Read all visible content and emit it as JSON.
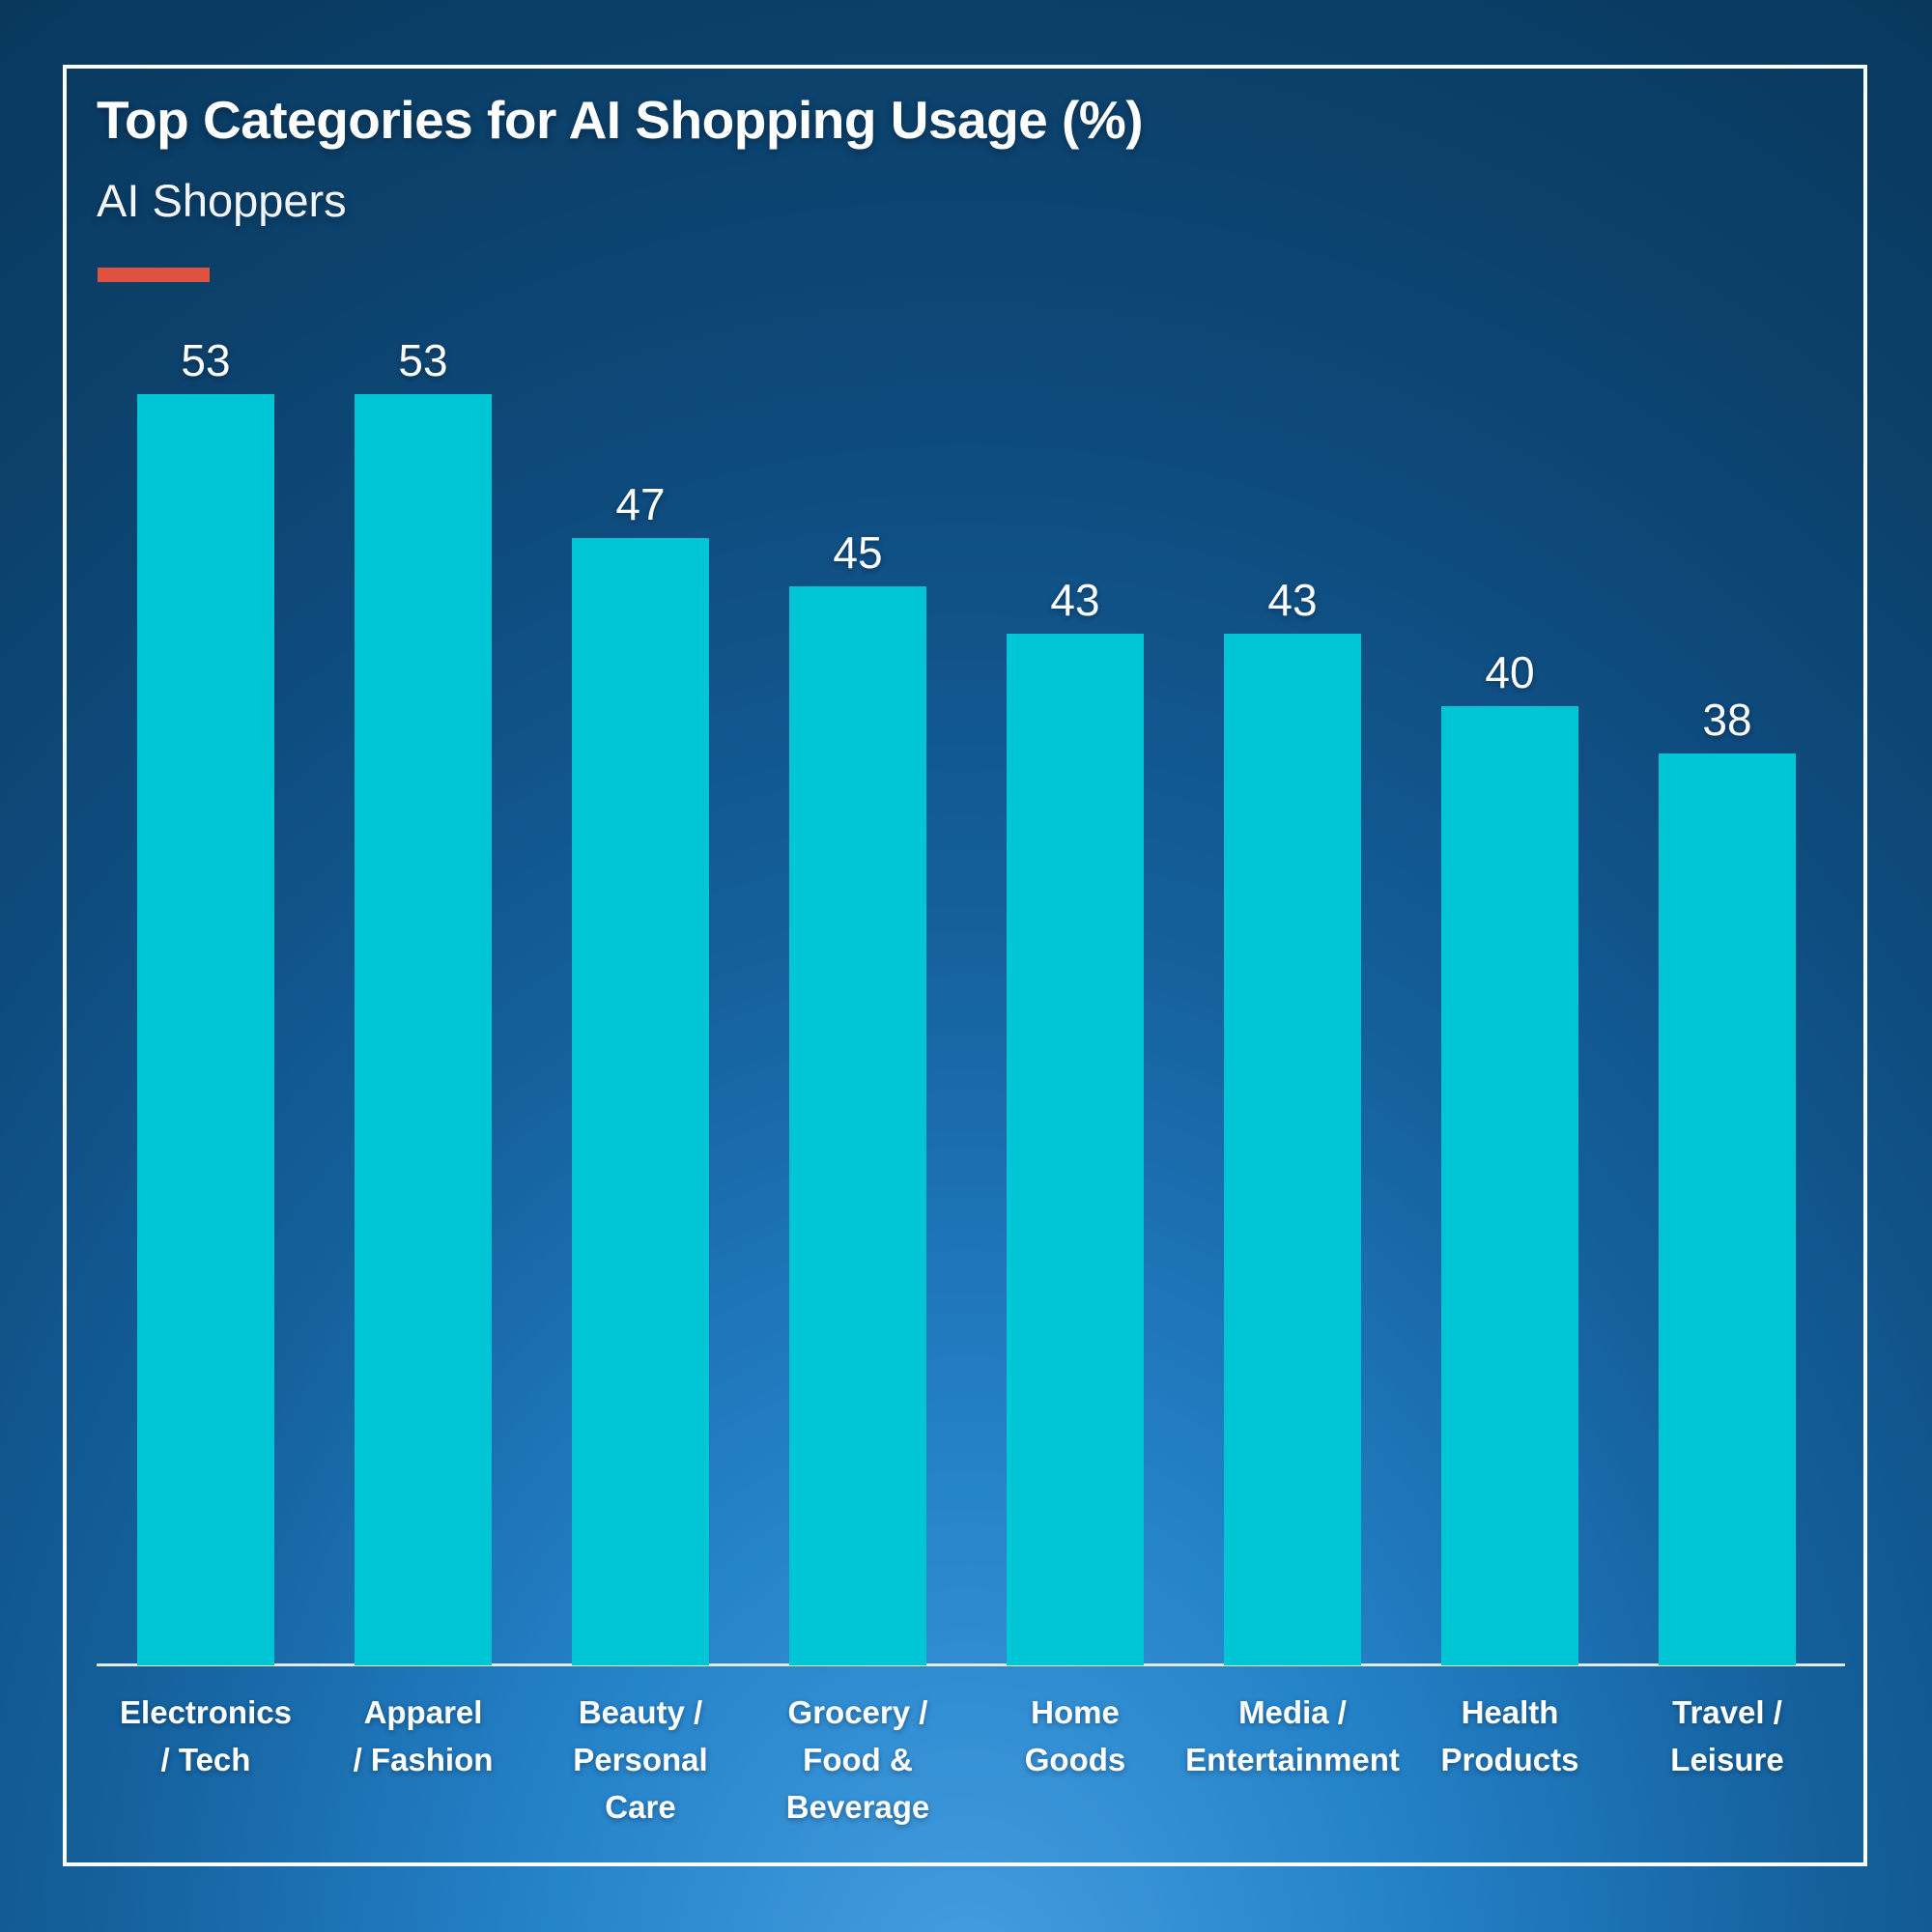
{
  "title": "Top Categories for AI Shopping Usage (%)",
  "subtitle": "AI Shoppers",
  "colors": {
    "bar": "#00c5d4",
    "accent": "#e05240",
    "background_top": "#093a60",
    "background_bottom": "#459edf",
    "text": "#ffffff",
    "axis_line": "#e2e9ef",
    "frame_border": "#fbfcfd"
  },
  "chart_data": {
    "type": "bar",
    "title": "Top Categories for AI Shopping Usage (%)",
    "subtitle": "AI Shoppers",
    "categories": [
      "Electronics / Tech",
      "Apparel / Fashion",
      "Beauty / Personal Care",
      "Grocery / Food & Beverage",
      "Home Goods",
      "Media / Entertainment",
      "Health Products",
      "Travel / Leisure"
    ],
    "category_label_lines": [
      [
        "Electronics",
        "/ Tech"
      ],
      [
        "Apparel",
        "/ Fashion"
      ],
      [
        "Beauty /",
        "Personal",
        "Care"
      ],
      [
        "Grocery /",
        "Food &",
        "Beverage"
      ],
      [
        "Home",
        "Goods"
      ],
      [
        "Media /",
        "Entertainment"
      ],
      [
        "Health",
        "Products"
      ],
      [
        "Travel /",
        "Leisure"
      ]
    ],
    "values": [
      53,
      53,
      47,
      45,
      43,
      43,
      40,
      38
    ],
    "value_labels": [
      "53",
      "53",
      "47",
      "45",
      "43",
      "43",
      "40",
      "38"
    ],
    "xlabel": "",
    "ylabel": "",
    "ylim": [
      0,
      58
    ],
    "grid": false,
    "legend": false,
    "data_labels_position": "above-bars"
  }
}
